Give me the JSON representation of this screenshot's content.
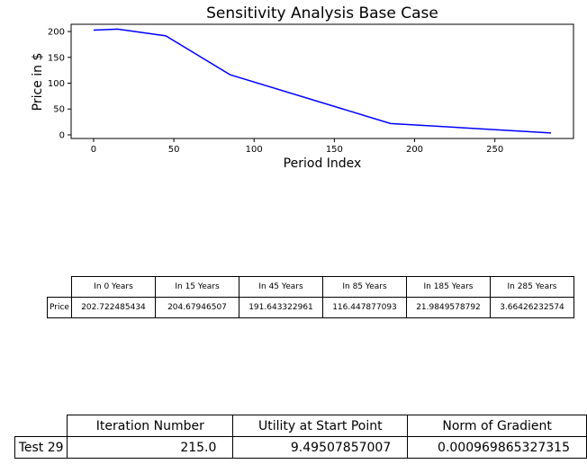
{
  "chart_data": {
    "type": "line",
    "title": "Sensitivity Analysis Base Case",
    "xlabel": "Period Index",
    "ylabel": "Price in $",
    "xlim": [
      -14,
      299
    ],
    "ylim": [
      -7,
      214
    ],
    "xticks": [
      0,
      50,
      100,
      150,
      200,
      250
    ],
    "yticks": [
      0,
      50,
      100,
      150,
      200
    ],
    "grid": false,
    "series": [
      {
        "color": "#0000ff",
        "x": [
          0,
          15,
          45,
          85,
          185,
          285
        ],
        "y": [
          202.722485434,
          204.67946507,
          191.643322961,
          116.447877093,
          21.9849578792,
          3.66426232574
        ]
      }
    ]
  },
  "price_table": {
    "columns": [
      "In 0 Years",
      "In 15 Years",
      "In 45 Years",
      "In 85 Years",
      "In 185 Years",
      "In 285 Years"
    ],
    "row_label": "Price",
    "values": [
      "202.722485434",
      "204.67946507",
      "191.643322961",
      "116.447877093",
      "21.9849578792",
      "3.66426232574"
    ]
  },
  "summary_table": {
    "columns": [
      "Iteration Number",
      "Utility at Start Point",
      "Norm of Gradient"
    ],
    "row_label": "Test 29",
    "values": [
      "215.0",
      "9.49507857007",
      "0.000969865327315"
    ]
  }
}
